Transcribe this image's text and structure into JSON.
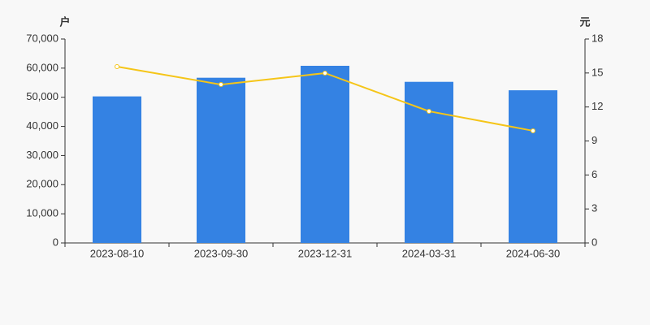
{
  "chart_data": {
    "type": "bar",
    "y_label": "户",
    "y2_label": "元",
    "categories": [
      "2023-08-10",
      "2023-09-30",
      "2023-12-31",
      "2024-03-31",
      "2024-06-30"
    ],
    "series": [
      {
        "type": "bar",
        "color": "#3482e3",
        "values": [
          50300,
          56700,
          60800,
          55300,
          52400
        ]
      },
      {
        "type": "line",
        "axis": "y2",
        "color": "#f5c518",
        "values": [
          15.56,
          13.98,
          14.99,
          11.62,
          9.9
        ]
      }
    ],
    "ylim": [
      0,
      70000
    ],
    "yticks": [
      0,
      {
        "value": 10000,
        "label": "10,000"
      },
      {
        "value": 20000,
        "label": "20,000"
      },
      {
        "value": 30000,
        "label": "30,000"
      },
      {
        "value": 40000,
        "label": "40,000"
      },
      {
        "value": 50000,
        "label": "50,000"
      },
      {
        "value": 60000,
        "label": "60,000"
      },
      {
        "value": 70000,
        "label": "70,000"
      }
    ],
    "y2lim": [
      0,
      18
    ],
    "y2ticks": [
      0,
      3,
      6,
      9,
      12,
      15,
      18
    ],
    "grid": false
  }
}
